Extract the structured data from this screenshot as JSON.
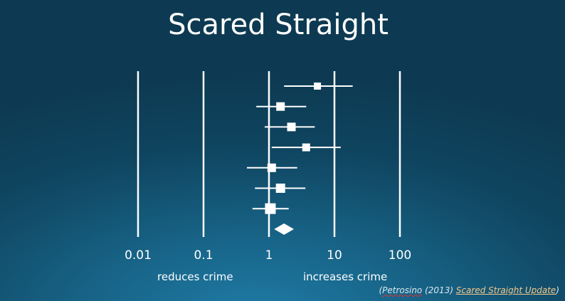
{
  "title": "Scared Straight",
  "chart_data": {
    "type": "forest",
    "xscale": "log",
    "xlim": [
      0.01,
      100
    ],
    "ticks": [
      0.01,
      0.1,
      1,
      10,
      100
    ],
    "tick_labels": [
      "0.01",
      "0.1",
      "1",
      "10",
      "100"
    ],
    "left_label": "reduces crime",
    "right_label": "increases crime",
    "studies": [
      {
        "est": 5.5,
        "lo": 1.7,
        "hi": 19,
        "weight": 10
      },
      {
        "est": 1.5,
        "lo": 0.64,
        "hi": 3.7,
        "weight": 12
      },
      {
        "est": 2.2,
        "lo": 0.86,
        "hi": 5.0,
        "weight": 12
      },
      {
        "est": 3.7,
        "lo": 1.1,
        "hi": 12.5,
        "weight": 11
      },
      {
        "est": 1.1,
        "lo": 0.46,
        "hi": 2.7,
        "weight": 12
      },
      {
        "est": 1.5,
        "lo": 0.61,
        "hi": 3.6,
        "weight": 13
      },
      {
        "est": 1.05,
        "lo": 0.56,
        "hi": 2.0,
        "weight": 15
      }
    ],
    "pooled": {
      "est": 1.7,
      "lo": 1.2,
      "hi": 2.4
    },
    "color": "#ffffff"
  },
  "citation": {
    "author": "Petrosino",
    "year": "(2013)",
    "link": "Scared Straight Update",
    "open": "(",
    "close": ")"
  }
}
